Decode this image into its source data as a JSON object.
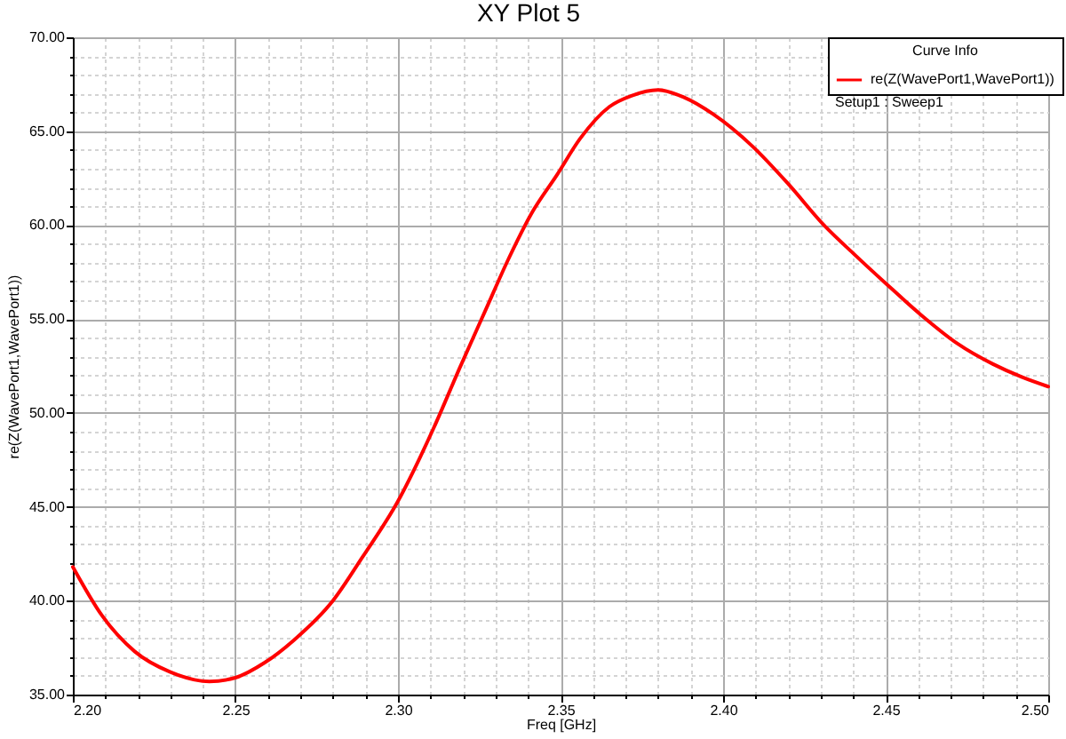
{
  "chart_data": {
    "type": "line",
    "title": "XY Plot 5",
    "xlabel": "Freq [GHz]",
    "ylabel": "re(Z(WavePort1,WavePort1))",
    "legend_title": "Curve Info",
    "annotations": [
      "Setup1 : Sweep1"
    ],
    "x": [
      2.2,
      2.209,
      2.219,
      2.23,
      2.242,
      2.25,
      2.259,
      2.268,
      2.28,
      2.289,
      2.3,
      2.311,
      2.319,
      2.327,
      2.334,
      2.341,
      2.349,
      2.356,
      2.365,
      2.372,
      2.38,
      2.388,
      2.397,
      2.409,
      2.42,
      2.431,
      2.44,
      2.45,
      2.461,
      2.472,
      2.483,
      2.492,
      2.5
    ],
    "series": [
      {
        "name": "re(Z(WavePort1,WavePort1))",
        "color": "#ff0000",
        "values": [
          41.8,
          39.2,
          37.3,
          36.2,
          35.7,
          35.9,
          36.7,
          37.9,
          40.0,
          42.3,
          45.3,
          49.2,
          52.4,
          55.5,
          58.2,
          60.6,
          62.7,
          64.6,
          66.3,
          66.9,
          67.2,
          66.8,
          65.9,
          64.2,
          62.2,
          60.0,
          58.5,
          56.9,
          55.2,
          53.7,
          52.6,
          51.9,
          51.4
        ]
      }
    ],
    "xlim": [
      2.2,
      2.5
    ],
    "ylim": [
      35,
      70
    ],
    "xticks": [
      {
        "value": 2.2,
        "label": "2.20"
      },
      {
        "value": 2.21,
        "label": null
      },
      {
        "value": 2.22,
        "label": null
      },
      {
        "value": 2.23,
        "label": null
      },
      {
        "value": 2.24,
        "label": null
      },
      2.25,
      {
        "value": 2.26,
        "label": null
      },
      {
        "value": 2.27,
        "label": null
      },
      {
        "value": 2.28,
        "label": null
      },
      {
        "value": 2.29,
        "label": null
      },
      {
        "value": 2.3,
        "label": "2.30"
      },
      {
        "value": 2.31,
        "label": null
      },
      {
        "value": 2.32,
        "label": null
      },
      {
        "value": 2.33,
        "label": null
      },
      {
        "value": 2.34,
        "label": null
      },
      2.35,
      {
        "value": 2.36,
        "label": null
      },
      {
        "value": 2.37,
        "label": null
      },
      {
        "value": 2.38,
        "label": null
      },
      {
        "value": 2.39,
        "label": null
      },
      {
        "value": 2.4,
        "label": "2.40"
      },
      {
        "value": 2.41,
        "label": null
      },
      {
        "value": 2.42,
        "label": null
      },
      {
        "value": 2.43,
        "label": null
      },
      {
        "value": 2.44,
        "label": null
      },
      2.45,
      {
        "value": 2.46,
        "label": null
      },
      {
        "value": 2.47,
        "label": null
      },
      {
        "value": 2.48,
        "label": null
      },
      {
        "value": 2.49,
        "label": null
      },
      {
        "value": 2.5,
        "label": "2.50"
      }
    ],
    "yticks": [
      {
        "value": 35,
        "label": "35.00"
      },
      {
        "value": 36,
        "label": null
      },
      {
        "value": 37,
        "label": null
      },
      {
        "value": 38,
        "label": null
      },
      {
        "value": 39,
        "label": null
      },
      {
        "value": 40,
        "label": "40.00"
      },
      {
        "value": 41,
        "label": null
      },
      {
        "value": 42,
        "label": null
      },
      {
        "value": 43,
        "label": null
      },
      {
        "value": 44,
        "label": null
      },
      {
        "value": 45,
        "label": "45.00"
      },
      {
        "value": 46,
        "label": null
      },
      {
        "value": 47,
        "label": null
      },
      {
        "value": 48,
        "label": null
      },
      {
        "value": 49,
        "label": null
      },
      {
        "value": 50,
        "label": "50.00"
      },
      {
        "value": 51,
        "label": null
      },
      {
        "value": 52,
        "label": null
      },
      {
        "value": 53,
        "label": null
      },
      {
        "value": 54,
        "label": null
      },
      {
        "value": 55,
        "label": "55.00"
      },
      {
        "value": 56,
        "label": null
      },
      {
        "value": 57,
        "label": null
      },
      {
        "value": 58,
        "label": null
      },
      {
        "value": 59,
        "label": null
      },
      {
        "value": 60,
        "label": "60.00"
      },
      {
        "value": 61,
        "label": null
      },
      {
        "value": 62,
        "label": null
      },
      {
        "value": 63,
        "label": null
      },
      {
        "value": 64,
        "label": null
      },
      {
        "value": 65,
        "label": "65.00"
      },
      {
        "value": 66,
        "label": null
      },
      {
        "value": 67,
        "label": null
      },
      {
        "value": 68,
        "label": null
      },
      {
        "value": 69,
        "label": null
      },
      {
        "value": 70,
        "label": "70.00"
      }
    ],
    "grid": true,
    "legend": "top right",
    "line_style": "solid"
  }
}
